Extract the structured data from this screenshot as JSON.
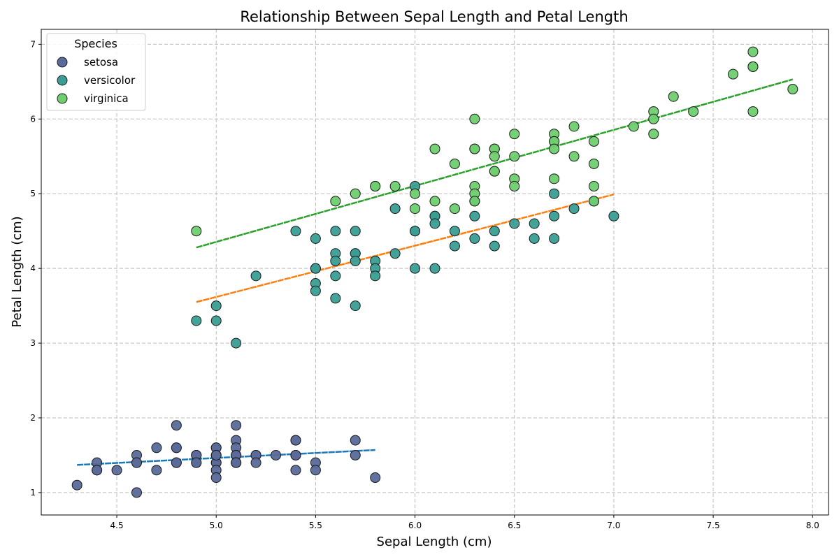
{
  "chart_data": {
    "type": "scatter",
    "title": "Relationship Between Sepal Length and Petal Length",
    "xlabel": "Sepal Length (cm)",
    "ylabel": "Petal Length (cm)",
    "xlim": [
      4.12,
      8.08
    ],
    "ylim": [
      0.7,
      7.2
    ],
    "x_ticks": [
      4.5,
      5.0,
      5.5,
      6.0,
      6.5,
      7.0,
      7.5,
      8.0
    ],
    "x_tick_labels": [
      "4.5",
      "5.0",
      "5.5",
      "6.0",
      "6.5",
      "7.0",
      "7.5",
      "8.0"
    ],
    "y_ticks": [
      1,
      2,
      3,
      4,
      5,
      6,
      7
    ],
    "y_tick_labels": [
      "1",
      "2",
      "3",
      "4",
      "5",
      "6",
      "7"
    ],
    "grid": true,
    "legend": {
      "title": "Species",
      "placement": "top-left"
    },
    "series": [
      {
        "name": "setosa",
        "color": "#5a6a9a",
        "line_color": "#1f77b4",
        "points": [
          [
            4.3,
            1.1
          ],
          [
            4.4,
            1.4
          ],
          [
            4.4,
            1.3
          ],
          [
            4.4,
            1.3
          ],
          [
            4.5,
            1.3
          ],
          [
            4.6,
            1.5
          ],
          [
            4.6,
            1.4
          ],
          [
            4.6,
            1.0
          ],
          [
            4.6,
            1.4
          ],
          [
            4.7,
            1.6
          ],
          [
            4.7,
            1.3
          ],
          [
            4.8,
            1.9
          ],
          [
            4.8,
            1.6
          ],
          [
            4.8,
            1.6
          ],
          [
            4.8,
            1.4
          ],
          [
            4.8,
            1.4
          ],
          [
            4.9,
            1.5
          ],
          [
            4.9,
            1.4
          ],
          [
            4.9,
            1.5
          ],
          [
            4.9,
            1.4
          ],
          [
            5.0,
            1.6
          ],
          [
            5.0,
            1.6
          ],
          [
            5.0,
            1.5
          ],
          [
            5.0,
            1.4
          ],
          [
            5.0,
            1.4
          ],
          [
            5.0,
            1.3
          ],
          [
            5.0,
            1.2
          ],
          [
            5.0,
            1.5
          ],
          [
            5.1,
            1.9
          ],
          [
            5.1,
            1.7
          ],
          [
            5.1,
            1.6
          ],
          [
            5.1,
            1.5
          ],
          [
            5.1,
            1.5
          ],
          [
            5.1,
            1.4
          ],
          [
            5.1,
            1.4
          ],
          [
            5.1,
            1.4
          ],
          [
            5.2,
            1.5
          ],
          [
            5.2,
            1.5
          ],
          [
            5.2,
            1.4
          ],
          [
            5.3,
            1.5
          ],
          [
            5.4,
            1.7
          ],
          [
            5.4,
            1.7
          ],
          [
            5.4,
            1.5
          ],
          [
            5.4,
            1.5
          ],
          [
            5.4,
            1.3
          ],
          [
            5.5,
            1.4
          ],
          [
            5.5,
            1.3
          ],
          [
            5.7,
            1.7
          ],
          [
            5.7,
            1.5
          ],
          [
            5.8,
            1.2
          ]
        ],
        "trend": [
          [
            4.3,
            1.37
          ],
          [
            5.8,
            1.57
          ]
        ]
      },
      {
        "name": "versicolor",
        "color": "#3a9e94",
        "line_color": "#ff7f0e",
        "points": [
          [
            4.9,
            3.3
          ],
          [
            5.0,
            3.5
          ],
          [
            5.0,
            3.3
          ],
          [
            5.1,
            3.0
          ],
          [
            5.2,
            3.9
          ],
          [
            5.4,
            4.5
          ],
          [
            5.5,
            4.4
          ],
          [
            5.5,
            4.0
          ],
          [
            5.5,
            4.0
          ],
          [
            5.5,
            3.8
          ],
          [
            5.5,
            3.7
          ],
          [
            5.6,
            4.5
          ],
          [
            5.6,
            4.2
          ],
          [
            5.6,
            4.1
          ],
          [
            5.6,
            3.9
          ],
          [
            5.6,
            3.6
          ],
          [
            5.7,
            4.5
          ],
          [
            5.7,
            4.2
          ],
          [
            5.7,
            4.2
          ],
          [
            5.7,
            4.1
          ],
          [
            5.7,
            3.5
          ],
          [
            5.8,
            4.1
          ],
          [
            5.8,
            4.0
          ],
          [
            5.8,
            3.9
          ],
          [
            5.9,
            4.8
          ],
          [
            5.9,
            4.2
          ],
          [
            6.0,
            5.1
          ],
          [
            6.0,
            4.5
          ],
          [
            6.0,
            4.5
          ],
          [
            6.0,
            4.0
          ],
          [
            6.1,
            4.7
          ],
          [
            6.1,
            4.7
          ],
          [
            6.1,
            4.6
          ],
          [
            6.1,
            4.0
          ],
          [
            6.2,
            4.5
          ],
          [
            6.2,
            4.3
          ],
          [
            6.3,
            4.9
          ],
          [
            6.3,
            4.7
          ],
          [
            6.3,
            4.4
          ],
          [
            6.4,
            4.5
          ],
          [
            6.4,
            4.3
          ],
          [
            6.5,
            4.6
          ],
          [
            6.6,
            4.6
          ],
          [
            6.6,
            4.4
          ],
          [
            6.7,
            5.0
          ],
          [
            6.7,
            4.7
          ],
          [
            6.7,
            4.4
          ],
          [
            6.8,
            4.8
          ],
          [
            6.9,
            4.9
          ],
          [
            7.0,
            4.7
          ]
        ],
        "trend": [
          [
            4.9,
            3.55
          ],
          [
            7.0,
            4.99
          ]
        ]
      },
      {
        "name": "virginica",
        "color": "#6fcf6f",
        "line_color": "#2ca02c",
        "points": [
          [
            4.9,
            4.5
          ],
          [
            5.6,
            4.9
          ],
          [
            5.7,
            5.0
          ],
          [
            5.8,
            5.1
          ],
          [
            5.8,
            5.1
          ],
          [
            5.9,
            5.1
          ],
          [
            6.0,
            5.0
          ],
          [
            6.0,
            4.8
          ],
          [
            6.1,
            5.6
          ],
          [
            6.1,
            4.9
          ],
          [
            6.2,
            5.4
          ],
          [
            6.2,
            4.8
          ],
          [
            6.3,
            6.0
          ],
          [
            6.3,
            5.6
          ],
          [
            6.3,
            5.6
          ],
          [
            6.3,
            5.1
          ],
          [
            6.3,
            5.0
          ],
          [
            6.3,
            4.9
          ],
          [
            6.4,
            5.6
          ],
          [
            6.4,
            5.6
          ],
          [
            6.4,
            5.5
          ],
          [
            6.4,
            5.3
          ],
          [
            6.4,
            5.3
          ],
          [
            6.5,
            5.8
          ],
          [
            6.5,
            5.5
          ],
          [
            6.5,
            5.2
          ],
          [
            6.5,
            5.1
          ],
          [
            6.7,
            5.8
          ],
          [
            6.7,
            5.7
          ],
          [
            6.7,
            5.7
          ],
          [
            6.7,
            5.6
          ],
          [
            6.7,
            5.2
          ],
          [
            6.8,
            5.9
          ],
          [
            6.8,
            5.5
          ],
          [
            6.9,
            5.7
          ],
          [
            6.9,
            5.4
          ],
          [
            6.9,
            5.1
          ],
          [
            7.1,
            5.9
          ],
          [
            7.2,
            6.1
          ],
          [
            7.2,
            6.0
          ],
          [
            7.2,
            5.8
          ],
          [
            7.3,
            6.3
          ],
          [
            7.4,
            6.1
          ],
          [
            7.6,
            6.6
          ],
          [
            7.7,
            6.9
          ],
          [
            7.7,
            6.7
          ],
          [
            7.7,
            6.7
          ],
          [
            7.7,
            6.1
          ],
          [
            7.9,
            6.4
          ],
          [
            6.9,
            4.9
          ]
        ],
        "trend": [
          [
            4.9,
            4.28
          ],
          [
            7.9,
            6.53
          ]
        ]
      }
    ]
  }
}
